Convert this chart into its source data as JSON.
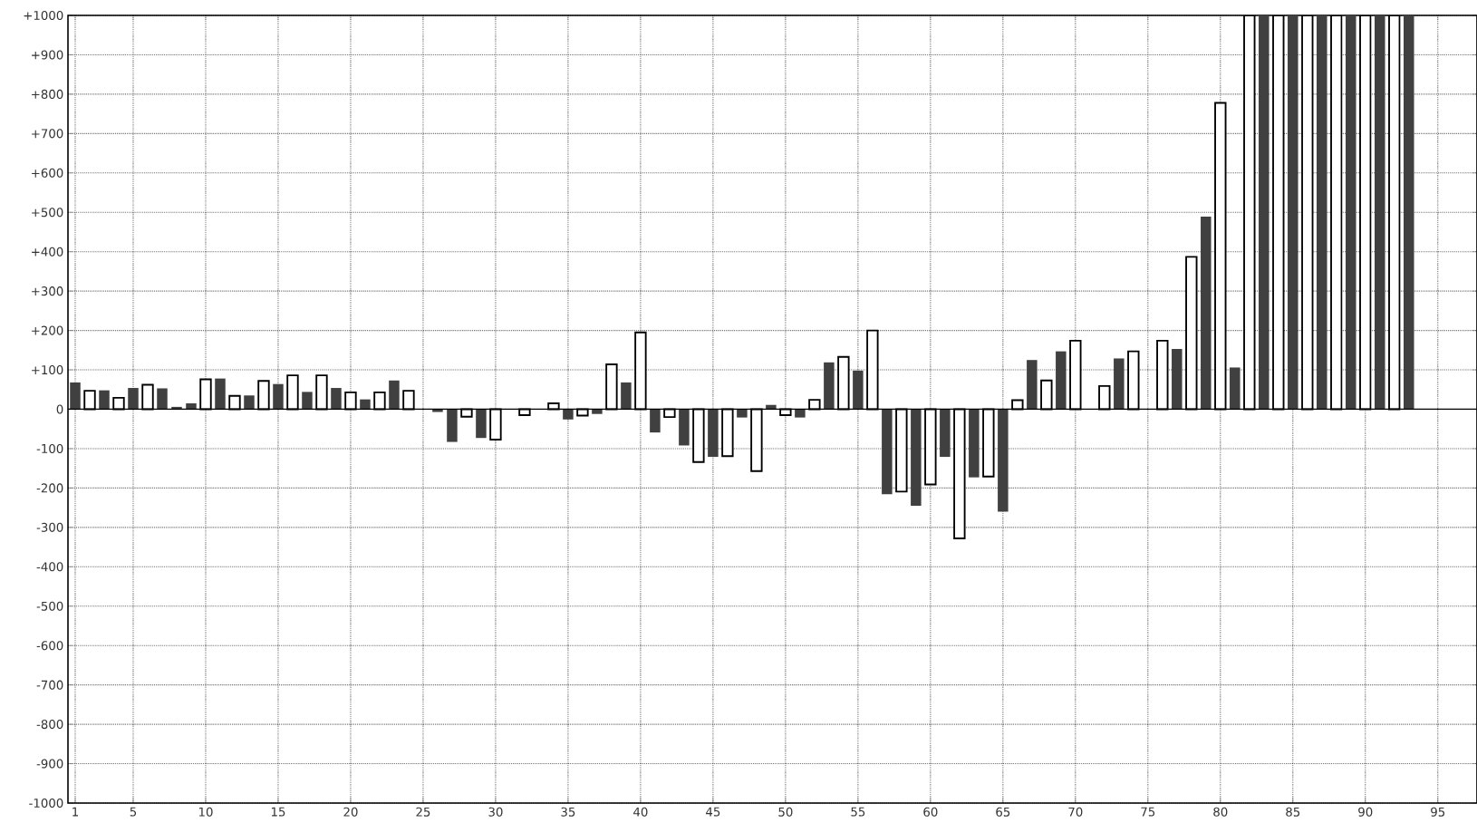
{
  "chart_data": {
    "type": "bar",
    "x": [
      1,
      2,
      3,
      4,
      5,
      6,
      7,
      8,
      9,
      10,
      11,
      12,
      13,
      14,
      15,
      16,
      17,
      18,
      19,
      20,
      21,
      22,
      23,
      24,
      26,
      27,
      28,
      29,
      30,
      32,
      34,
      35,
      36,
      37,
      38,
      39,
      40,
      41,
      42,
      43,
      44,
      45,
      46,
      47,
      48,
      49,
      50,
      51,
      52,
      53,
      54,
      55,
      56,
      57,
      58,
      59,
      60,
      61,
      62,
      63,
      64,
      65,
      66,
      67,
      68,
      69,
      70,
      72,
      73,
      74,
      76,
      77,
      78,
      79,
      80,
      81,
      82,
      83,
      84,
      85,
      86,
      87,
      88,
      89,
      90,
      91,
      92,
      93
    ],
    "values": [
      68,
      47,
      48,
      29,
      54,
      62,
      53,
      6,
      15,
      76,
      78,
      34,
      35,
      72,
      64,
      86,
      44,
      86,
      54,
      43,
      25,
      43,
      73,
      47,
      -7,
      -83,
      -19,
      -73,
      -77,
      -15,
      15,
      -26,
      -16,
      -12,
      114,
      68,
      195,
      -59,
      -20,
      -92,
      -134,
      -121,
      -119,
      -21,
      -157,
      11,
      -15,
      -21,
      24,
      119,
      133,
      98,
      200,
      -216,
      -209,
      -245,
      -191,
      -121,
      -328,
      -173,
      -171,
      -260,
      23,
      125,
      73,
      147,
      174,
      59,
      129,
      147,
      174,
      153,
      387,
      489,
      778,
      106,
      1000,
      1000,
      1000,
      1000,
      1000,
      1000,
      1000,
      1000,
      1000,
      1000,
      1000,
      1000
    ],
    "colors": [
      "#404040",
      "#ffffff",
      "#404040",
      "#ffffff",
      "#404040",
      "#ffffff",
      "#404040",
      "#404040",
      "#404040",
      "#ffffff",
      "#404040",
      "#ffffff",
      "#404040",
      "#ffffff",
      "#404040",
      "#ffffff",
      "#404040",
      "#ffffff",
      "#404040",
      "#ffffff",
      "#404040",
      "#ffffff",
      "#404040",
      "#ffffff",
      "#404040",
      "#404040",
      "#ffffff",
      "#404040",
      "#ffffff",
      "#ffffff",
      "#ffffff",
      "#404040",
      "#ffffff",
      "#404040",
      "#ffffff",
      "#404040",
      "#ffffff",
      "#404040",
      "#ffffff",
      "#404040",
      "#ffffff",
      "#404040",
      "#ffffff",
      "#404040",
      "#ffffff",
      "#404040",
      "#ffffff",
      "#404040",
      "#ffffff",
      "#404040",
      "#ffffff",
      "#404040",
      "#ffffff",
      "#404040",
      "#ffffff",
      "#404040",
      "#ffffff",
      "#404040",
      "#ffffff",
      "#404040",
      "#ffffff",
      "#404040",
      "#ffffff",
      "#404040",
      "#ffffff",
      "#404040",
      "#ffffff",
      "#ffffff",
      "#404040",
      "#ffffff",
      "#ffffff",
      "#404040",
      "#ffffff",
      "#404040",
      "#ffffff",
      "#404040",
      "#ffffff",
      "#404040",
      "#ffffff",
      "#404040",
      "#ffffff",
      "#404040",
      "#ffffff",
      "#404040",
      "#ffffff",
      "#404040",
      "#ffffff",
      "#404040"
    ],
    "xlim": [
      0.5,
      97.7
    ],
    "xticks": [
      1,
      5,
      10,
      15,
      20,
      25,
      30,
      35,
      40,
      45,
      50,
      55,
      60,
      65,
      70,
      75,
      80,
      85,
      90,
      95
    ],
    "ylim": [
      -1000,
      1000
    ],
    "yticks": [
      -1000,
      -900,
      -800,
      -700,
      -600,
      -500,
      -400,
      -300,
      -200,
      -100,
      0,
      {
        "value": 100,
        "label": "+100"
      },
      {
        "value": 200,
        "label": "+200"
      },
      {
        "value": 300,
        "label": "+300"
      },
      {
        "value": 400,
        "label": "+400"
      },
      {
        "value": 500,
        "label": "+500"
      },
      {
        "value": 600,
        "label": "+600"
      },
      {
        "value": 700,
        "label": "+700"
      },
      {
        "value": 800,
        "label": "+800"
      },
      {
        "value": 900,
        "label": "+900"
      },
      {
        "value": 1000,
        "label": "+1000"
      }
    ],
    "ref_lines": [
      {
        "axis": "y",
        "value": 0,
        "color": "#000000"
      }
    ],
    "grid": true
  }
}
